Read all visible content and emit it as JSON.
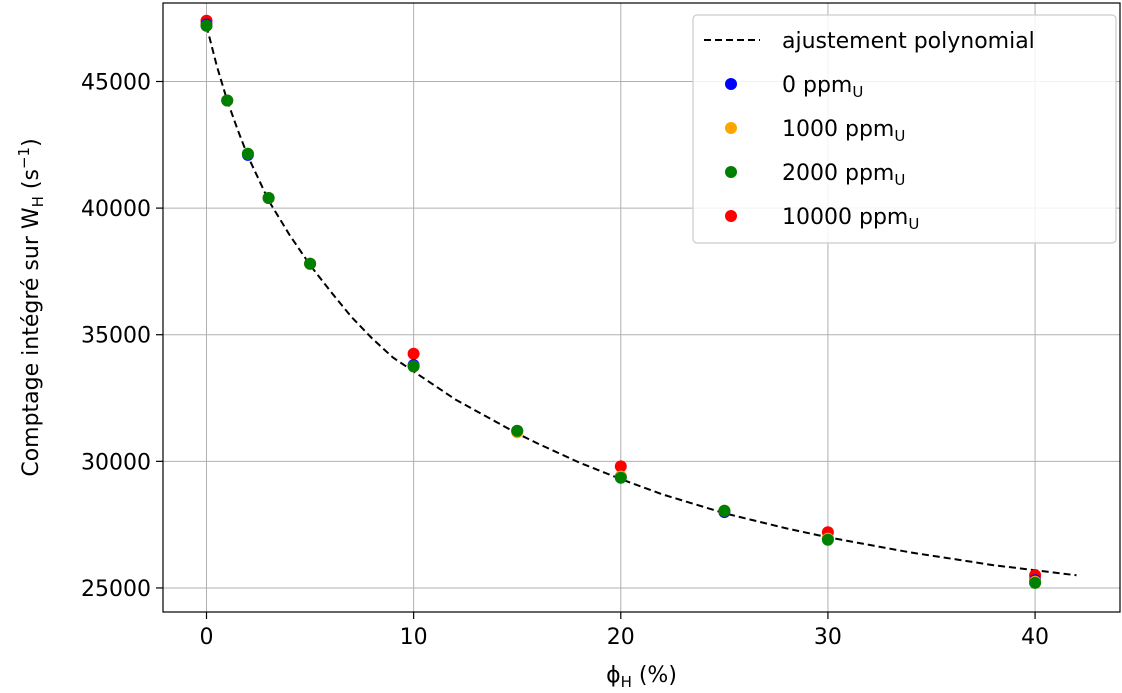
{
  "chart_data": {
    "type": "scatter",
    "xlabel": {
      "base": "ϕ",
      "sub": "H",
      "rest": " (%)"
    },
    "ylabel": {
      "pre": "Comptage intégré sur W",
      "sub": "H",
      "mid": " (s",
      "sup": "−1",
      "post": ")"
    },
    "xlim": [
      -2.1,
      44.1
    ],
    "ylim": [
      24050,
      48100
    ],
    "xticks": [
      0,
      10,
      20,
      30,
      40
    ],
    "yticks": [
      25000,
      30000,
      35000,
      40000,
      45000
    ],
    "xtick_labels": [
      "0",
      "10",
      "20",
      "30",
      "40"
    ],
    "ytick_labels": [
      "25000",
      "30000",
      "35000",
      "40000",
      "45000"
    ],
    "grid": true,
    "legend_position": "top-right",
    "fit": {
      "name": "ajustement polynomial",
      "style": "dashed",
      "color": "#000000",
      "x": [
        0,
        0.5,
        1,
        1.5,
        2,
        3,
        4,
        5,
        6,
        7,
        8,
        9,
        10,
        12,
        14,
        15,
        16,
        18,
        20,
        22,
        24,
        25,
        26,
        28,
        30,
        32,
        34,
        36,
        38,
        40,
        42
      ],
      "y": [
        47200,
        45600,
        44250,
        43100,
        42050,
        40300,
        38950,
        37750,
        36700,
        35700,
        34850,
        34100,
        33550,
        32450,
        31550,
        31100,
        30700,
        29950,
        29300,
        28700,
        28200,
        27950,
        27750,
        27350,
        27000,
        26700,
        26400,
        26150,
        25900,
        25700,
        25500
      ]
    },
    "series": [
      {
        "name": "0 ppm",
        "name_sub": "U",
        "color": "#0000ff",
        "x": [
          0,
          1,
          2,
          3,
          5,
          10,
          15,
          20,
          25,
          30,
          40
        ],
        "y": [
          47250,
          44250,
          42100,
          40400,
          37800,
          33800,
          31200,
          29400,
          28000,
          26950,
          25300
        ]
      },
      {
        "name": "1000 ppm",
        "name_sub": "U",
        "color": "#ffa500",
        "x": [
          0,
          1,
          2,
          3,
          5,
          10,
          15,
          20,
          25,
          30,
          40
        ],
        "y": [
          47200,
          44250,
          42150,
          40400,
          37800,
          33750,
          31150,
          29400,
          28050,
          26950,
          25250
        ]
      },
      {
        "name": "2000 ppm",
        "name_sub": "U",
        "color": "#008000",
        "x": [
          0,
          1,
          2,
          3,
          5,
          10,
          15,
          20,
          25,
          30,
          40
        ],
        "y": [
          47200,
          44250,
          42150,
          40400,
          37800,
          33750,
          31200,
          29350,
          28050,
          26900,
          25200
        ]
      },
      {
        "name": "10000 ppm",
        "name_sub": "U",
        "color": "#ff0000",
        "x": [
          0,
          10,
          20,
          30,
          40
        ],
        "y": [
          47400,
          34250,
          29800,
          27200,
          25500
        ]
      }
    ],
    "draw_order": [
      3,
      0,
      1,
      2
    ]
  }
}
